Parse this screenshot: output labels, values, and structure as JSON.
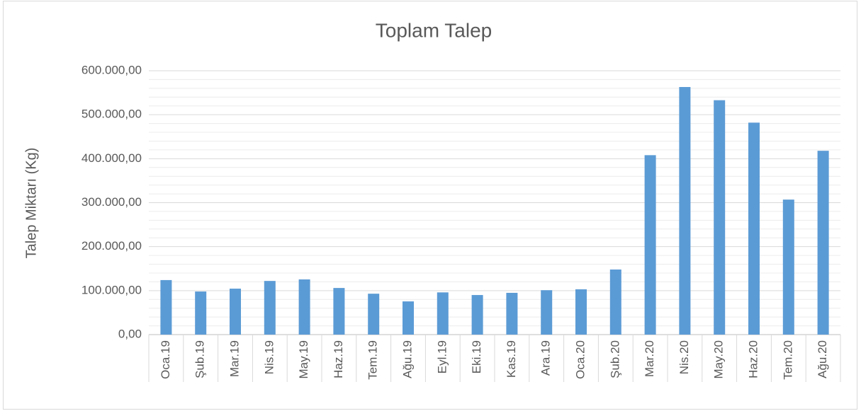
{
  "chart_data": {
    "type": "bar",
    "title": "Toplam Talep",
    "y_label": "Talep Miktarı (Kg)",
    "categories": [
      "Oca.19",
      "Şub.19",
      "Mar.19",
      "Nis.19",
      "May.19",
      "Haz.19",
      "Tem.19",
      "Ağu.19",
      "Eyl.19",
      "Eki.19",
      "Kas.19",
      "Ara.19",
      "Oca.20",
      "Şub.20",
      "Mar.20",
      "Nis.20",
      "May.20",
      "Haz.20",
      "Tem.20",
      "Ağu.20"
    ],
    "values": [
      124000,
      98000,
      104500,
      122000,
      125500,
      106000,
      93000,
      75500,
      96000,
      90000,
      95000,
      101000,
      103000,
      148000,
      408000,
      563000,
      533000,
      482000,
      307000,
      418000
    ],
    "color": "#5b9bd5",
    "ylim": [
      0,
      600000
    ],
    "yticks": [
      {
        "value": 0,
        "label": "0,00"
      },
      {
        "value": 100000,
        "label": "100.000,00"
      },
      {
        "value": 200000,
        "label": "200.000,00"
      },
      {
        "value": 300000,
        "label": "300.000,00"
      },
      {
        "value": 400000,
        "label": "400.000,00"
      },
      {
        "value": 500000,
        "label": "500.000,00"
      },
      {
        "value": 600000,
        "label": "600.000,00"
      }
    ],
    "minor_yticks": [
      20000,
      40000,
      60000,
      80000,
      120000,
      140000,
      160000,
      180000,
      220000,
      240000,
      260000,
      280000,
      320000,
      340000,
      360000,
      380000,
      420000,
      440000,
      460000,
      480000,
      520000,
      540000,
      560000,
      580000
    ],
    "grid": true
  }
}
